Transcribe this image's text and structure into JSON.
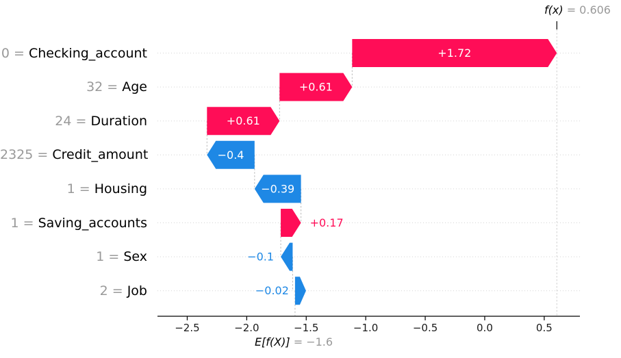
{
  "chart_data": {
    "type": "bar",
    "subtype": "shap-waterfall",
    "fx": {
      "label": "f(x)",
      "value": 0.606,
      "value_text": "= 0.606"
    },
    "expected_value": {
      "label": "E[f(X)]",
      "value": -1.6,
      "value_text": "= −1.6"
    },
    "features": [
      {
        "value": "0",
        "name": "Checking_account",
        "shap": 1.72,
        "label": "+1.72",
        "label_placement": "inside"
      },
      {
        "value": "32",
        "name": "Age",
        "shap": 0.61,
        "label": "+0.61",
        "label_placement": "inside"
      },
      {
        "value": "24",
        "name": "Duration",
        "shap": 0.61,
        "label": "+0.61",
        "label_placement": "inside"
      },
      {
        "value": "2325",
        "name": "Credit_amount",
        "shap": -0.4,
        "label": "−0.4",
        "label_placement": "inside"
      },
      {
        "value": "1",
        "name": "Housing",
        "shap": -0.39,
        "label": "−0.39",
        "label_placement": "inside"
      },
      {
        "value": "1",
        "name": "Saving_accounts",
        "shap": 0.17,
        "label": "+0.17",
        "label_placement": "outside"
      },
      {
        "value": "1",
        "name": "Sex",
        "shap": -0.1,
        "label": "−0.1",
        "label_placement": "outside"
      },
      {
        "value": "2",
        "name": "Job",
        "shap": -0.02,
        "label": "−0.02",
        "label_placement": "outside"
      }
    ],
    "equals_sign": "=",
    "x_ticks": [
      {
        "value": -2.5,
        "label": "−2.5"
      },
      {
        "value": -2.0,
        "label": "−2.0"
      },
      {
        "value": -1.5,
        "label": "−1.5"
      },
      {
        "value": -1.0,
        "label": "−1.0"
      },
      {
        "value": -0.5,
        "label": "−0.5"
      },
      {
        "value": 0.0,
        "label": "0.0"
      },
      {
        "value": 0.5,
        "label": "0.5"
      }
    ],
    "xlim": [
      -2.75,
      0.8
    ],
    "grid": "horizontal-dotted",
    "legend": "none",
    "colors": {
      "positive": "#ff0d57",
      "negative": "#1e88e5",
      "muted_text": "#999999",
      "gridline": "#d4d4d4",
      "connector": "#b9b9b9",
      "axis": "#000000"
    }
  }
}
